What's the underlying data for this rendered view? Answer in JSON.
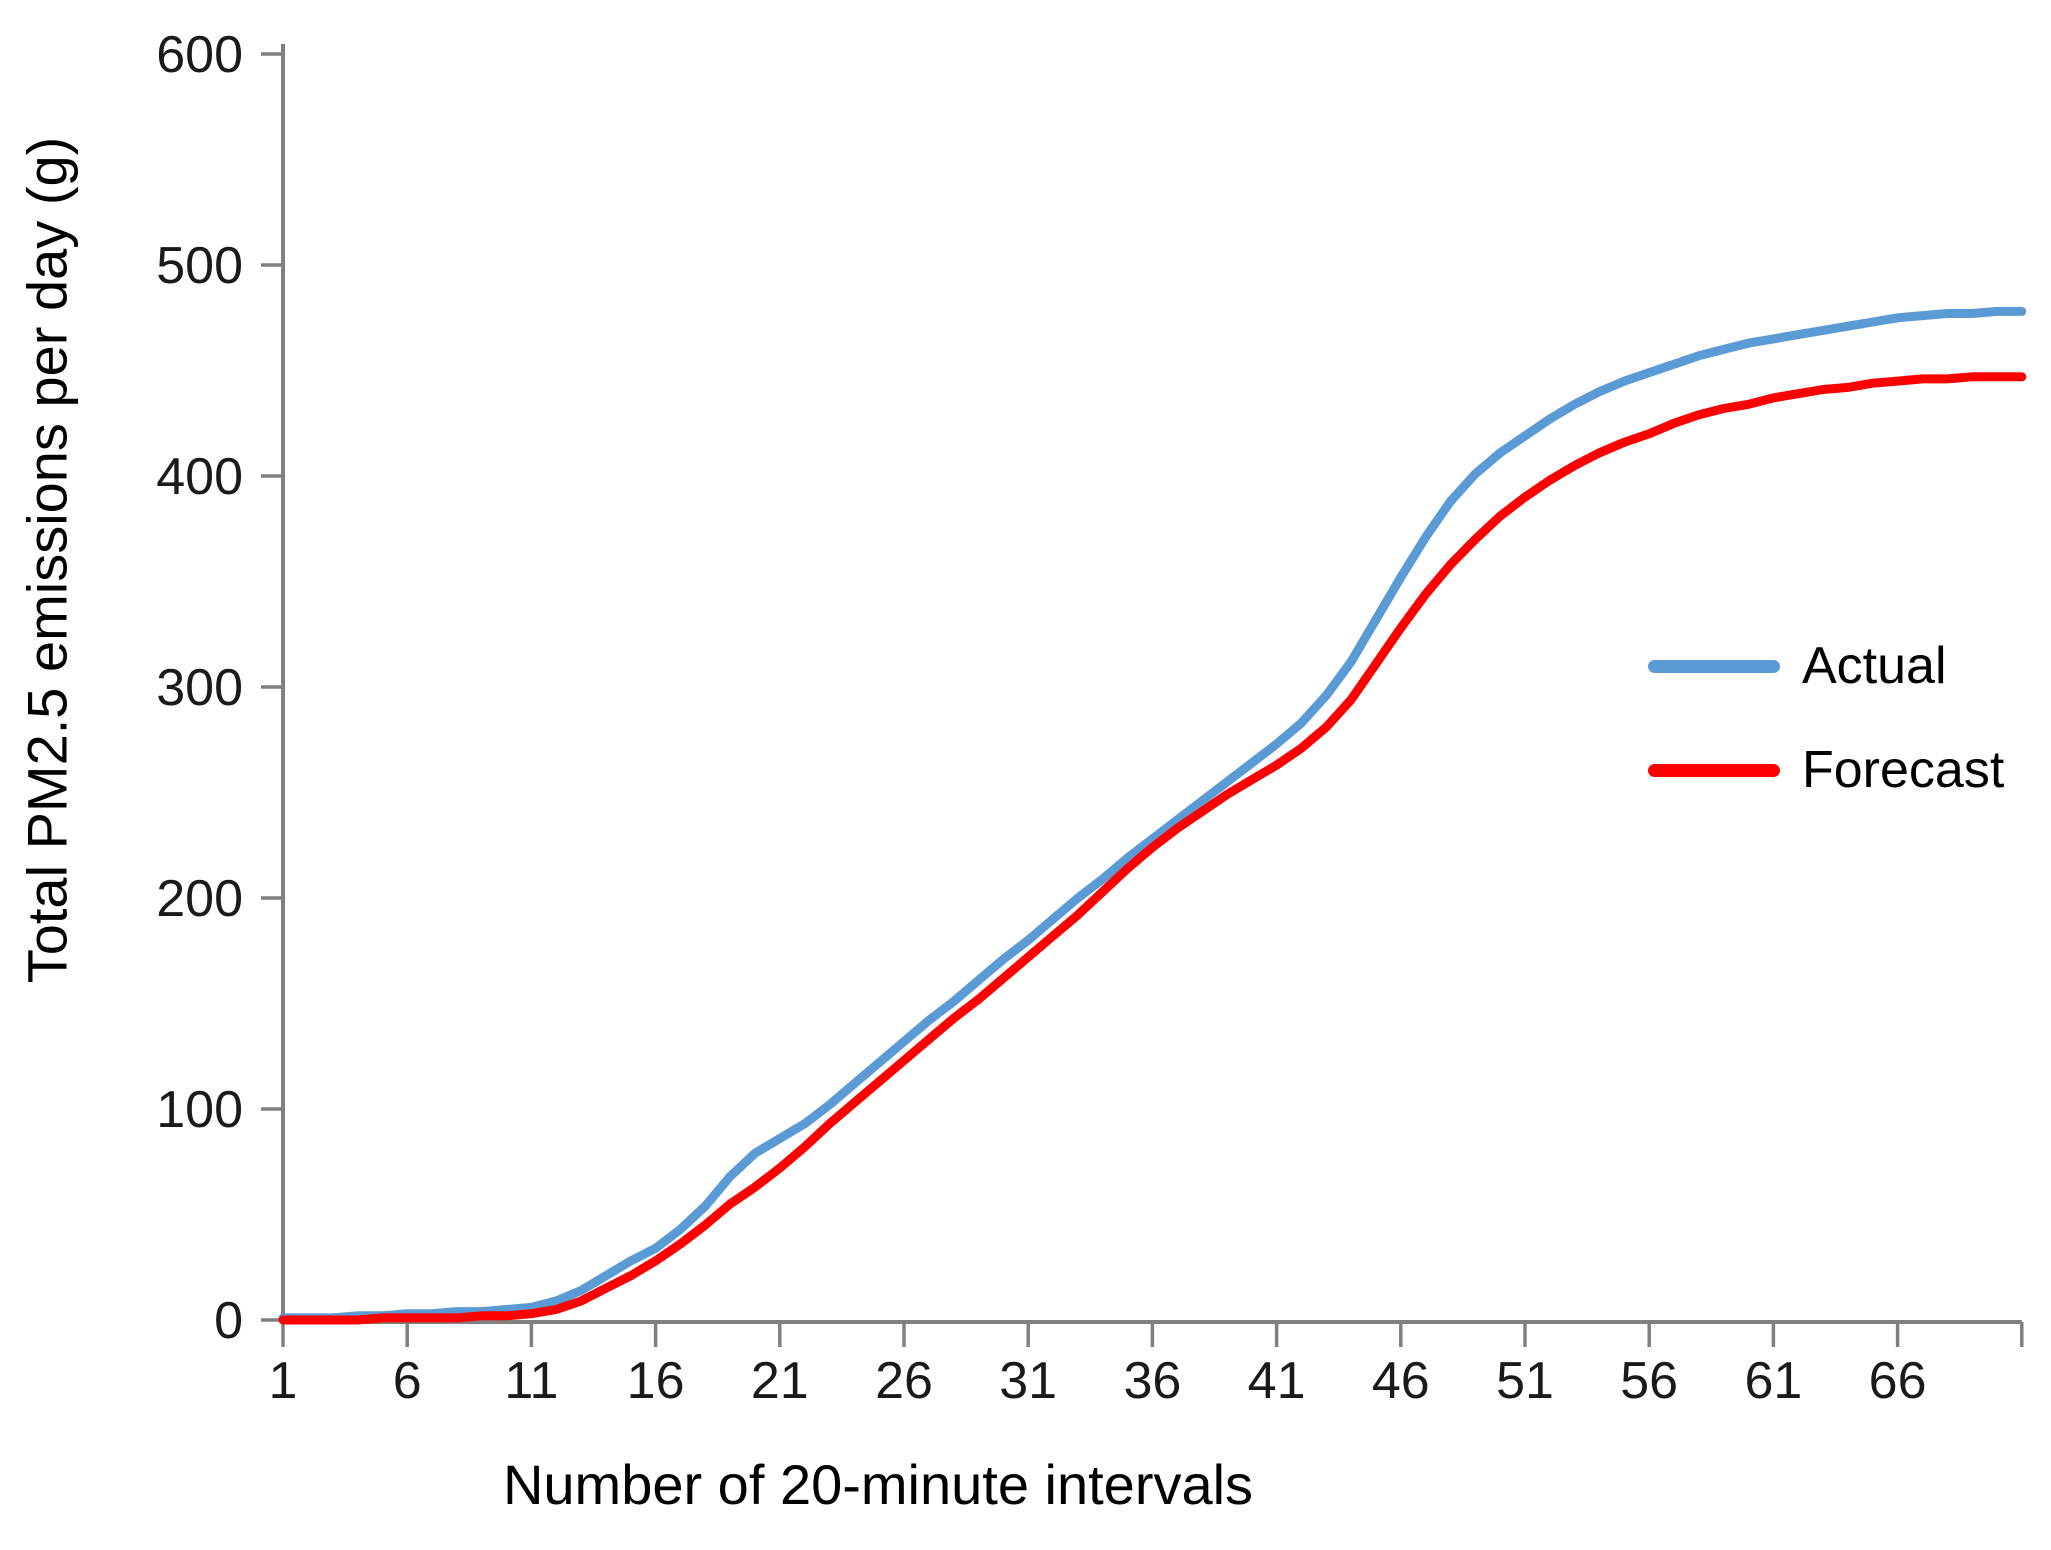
{
  "chart_data": {
    "type": "line",
    "title": "",
    "xlabel": "Number of 20-minute intervals",
    "ylabel": "Total PM2.5 emissions per day (g)",
    "xlim": [
      1,
      71
    ],
    "ylim": [
      0,
      600
    ],
    "grid": "off",
    "legend_position": "inside-right",
    "axis_color": "#808080",
    "tick_label_color": "#1a1a1a",
    "y_ticks": [
      0,
      100,
      200,
      300,
      400,
      500,
      600
    ],
    "x_tick_labels": [
      1,
      6,
      11,
      16,
      21,
      26,
      31,
      36,
      41,
      46,
      51,
      56,
      61,
      66
    ],
    "x": [
      1,
      2,
      3,
      4,
      5,
      6,
      7,
      8,
      9,
      10,
      11,
      12,
      13,
      14,
      15,
      16,
      17,
      18,
      19,
      20,
      21,
      22,
      23,
      24,
      25,
      26,
      27,
      28,
      29,
      30,
      31,
      32,
      33,
      34,
      35,
      36,
      37,
      38,
      39,
      40,
      41,
      42,
      43,
      44,
      45,
      46,
      47,
      48,
      49,
      50,
      51,
      52,
      53,
      54,
      55,
      56,
      57,
      58,
      59,
      60,
      61,
      62,
      63,
      64,
      65,
      66,
      67,
      68,
      69,
      70,
      71
    ],
    "series": [
      {
        "name": "Actual",
        "color": "#5B9BD5",
        "values": [
          1,
          1,
          1,
          2,
          2,
          3,
          3,
          4,
          4,
          5,
          6,
          9,
          14,
          21,
          28,
          34,
          43,
          54,
          68,
          79,
          86,
          93,
          102,
          112,
          122,
          132,
          142,
          151,
          161,
          171,
          180,
          190,
          200,
          209,
          219,
          228,
          237,
          246,
          255,
          264,
          273,
          283,
          296,
          312,
          332,
          352,
          371,
          388,
          401,
          411,
          419,
          427,
          434,
          440,
          445,
          449,
          453,
          457,
          460,
          463,
          465,
          467,
          469,
          471,
          473,
          475,
          476,
          477,
          477,
          478,
          478
        ]
      },
      {
        "name": "Forecast",
        "color": "#FE0000",
        "values": [
          0,
          0,
          0,
          0,
          1,
          1,
          1,
          1,
          2,
          2,
          3,
          5,
          9,
          15,
          21,
          28,
          36,
          45,
          55,
          63,
          72,
          82,
          93,
          103,
          113,
          123,
          133,
          143,
          152,
          162,
          172,
          182,
          192,
          203,
          214,
          224,
          233,
          241,
          249,
          256,
          263,
          271,
          281,
          294,
          311,
          328,
          344,
          358,
          370,
          381,
          390,
          398,
          405,
          411,
          416,
          420,
          425,
          429,
          432,
          434,
          437,
          439,
          441,
          442,
          444,
          445,
          446,
          446,
          447,
          447,
          447
        ]
      }
    ]
  }
}
